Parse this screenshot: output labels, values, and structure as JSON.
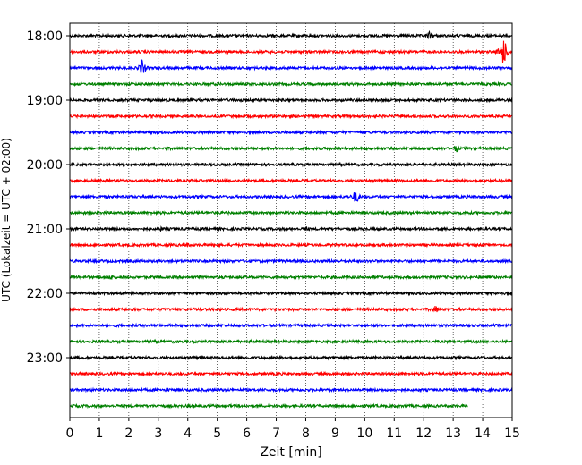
{
  "chart_data": {
    "type": "line",
    "subtype": "helicorder",
    "xlabel": "Zeit  [min]",
    "ylabel": "UTC (Lokalzeit = UTC + 02:00)",
    "xlim": [
      0,
      15
    ],
    "x_ticks": [
      "0",
      "1",
      "2",
      "3",
      "4",
      "5",
      "6",
      "7",
      "8",
      "9",
      "10",
      "11",
      "12",
      "13",
      "14",
      "15"
    ],
    "y_tick_labels": [
      "18:00",
      "19:00",
      "20:00",
      "21:00",
      "22:00",
      "23:00"
    ],
    "grid": "vertical-dotted",
    "trace_colors": [
      "#000000",
      "#ff0000",
      "#0000ff",
      "#008000"
    ],
    "traces": [
      {
        "start": "18:00",
        "color": "#000000",
        "events": [
          {
            "x": 12.2,
            "amp": 5
          }
        ]
      },
      {
        "start": "18:15",
        "color": "#ff0000",
        "events": [
          {
            "x": 14.7,
            "amp": 18
          }
        ]
      },
      {
        "start": "18:30",
        "color": "#0000ff",
        "events": [
          {
            "x": 2.45,
            "amp": 10
          }
        ]
      },
      {
        "start": "18:45",
        "color": "#008000",
        "events": []
      },
      {
        "start": "19:00",
        "color": "#000000",
        "events": [
          {
            "x": 5.8,
            "amp": 3
          }
        ]
      },
      {
        "start": "19:15",
        "color": "#ff0000",
        "events": []
      },
      {
        "start": "19:30",
        "color": "#0000ff",
        "events": []
      },
      {
        "start": "19:45",
        "color": "#008000",
        "events": [
          {
            "x": 9.0,
            "amp": 3
          },
          {
            "x": 13.1,
            "amp": 5
          }
        ]
      },
      {
        "start": "20:00",
        "color": "#000000",
        "events": []
      },
      {
        "start": "20:15",
        "color": "#ff0000",
        "events": []
      },
      {
        "start": "20:30",
        "color": "#0000ff",
        "events": [
          {
            "x": 9.7,
            "amp": 9
          }
        ]
      },
      {
        "start": "20:45",
        "color": "#008000",
        "events": []
      },
      {
        "start": "21:00",
        "color": "#000000",
        "events": [
          {
            "x": 3.1,
            "amp": 3
          },
          {
            "x": 8.0,
            "amp": 3
          }
        ]
      },
      {
        "start": "21:15",
        "color": "#ff0000",
        "events": [
          {
            "x": 3.95,
            "amp": 4
          }
        ]
      },
      {
        "start": "21:30",
        "color": "#0000ff",
        "events": []
      },
      {
        "start": "21:45",
        "color": "#008000",
        "events": [
          {
            "x": 1.35,
            "amp": 4
          }
        ]
      },
      {
        "start": "22:00",
        "color": "#000000",
        "events": []
      },
      {
        "start": "22:15",
        "color": "#ff0000",
        "events": [
          {
            "x": 12.4,
            "amp": 5
          }
        ]
      },
      {
        "start": "22:30",
        "color": "#0000ff",
        "events": []
      },
      {
        "start": "22:45",
        "color": "#008000",
        "events": []
      },
      {
        "start": "23:00",
        "color": "#000000",
        "events": []
      },
      {
        "start": "23:15",
        "color": "#ff0000",
        "events": []
      },
      {
        "start": "23:30",
        "color": "#0000ff",
        "events": [
          {
            "x": 3.3,
            "amp": 3
          }
        ]
      },
      {
        "start": "23:45",
        "color": "#008000",
        "end": 13.5,
        "events": []
      }
    ]
  }
}
